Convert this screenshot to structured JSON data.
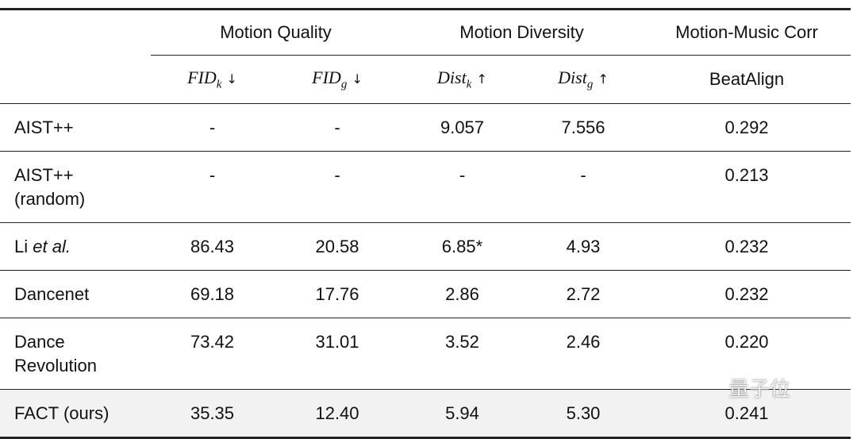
{
  "table": {
    "groups": [
      {
        "label": "Motion Quality",
        "span": 2
      },
      {
        "label": "Motion Diversity",
        "span": 2
      },
      {
        "label": "Motion-Music Corr",
        "span": 1
      }
    ],
    "columns": [
      {
        "main": "FID",
        "sub": "k",
        "arrow": "↓"
      },
      {
        "main": "FID",
        "sub": "g",
        "arrow": "↓"
      },
      {
        "main": "Dist",
        "sub": "k",
        "arrow": "↑"
      },
      {
        "main": "Dist",
        "sub": "g",
        "arrow": "↑"
      },
      {
        "main": "BeatAlign"
      }
    ],
    "rows": [
      {
        "label": [
          "AIST++"
        ],
        "cells": [
          "-",
          "-",
          "9.057",
          "7.556",
          "0.292"
        ]
      },
      {
        "label": [
          "AIST++",
          "(random)"
        ],
        "cells": [
          "-",
          "-",
          "-",
          "-",
          "0.213"
        ]
      },
      {
        "label": [
          "Li"
        ],
        "label_italic": "et al.",
        "cells": [
          "86.43",
          "20.58",
          "6.85*",
          "4.93",
          "0.232"
        ]
      },
      {
        "label": [
          "Dancenet"
        ],
        "cells": [
          "69.18",
          "17.76",
          "2.86",
          "2.72",
          "0.232"
        ]
      },
      {
        "label": [
          "Dance",
          "Revolution"
        ],
        "cells": [
          "73.42",
          "31.01",
          "3.52",
          "2.46",
          "0.220"
        ]
      },
      {
        "label": [
          "FACT (ours)"
        ],
        "cells": [
          "35.35",
          "12.40",
          "5.94",
          "5.30",
          "0.241"
        ],
        "highlight": true
      }
    ],
    "watermark": "量子位"
  }
}
